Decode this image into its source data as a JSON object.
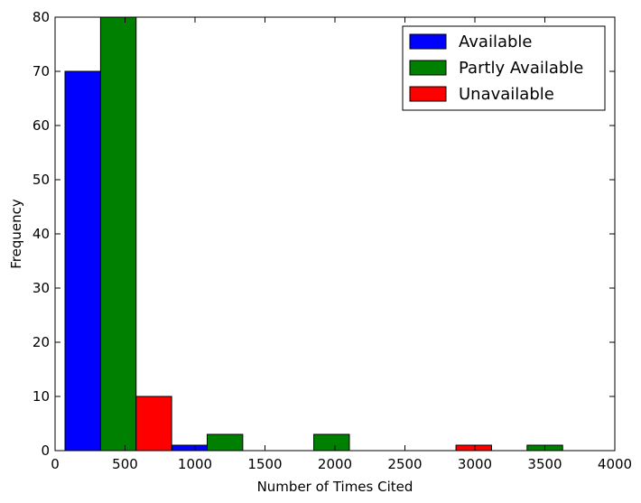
{
  "chart_data": {
    "type": "bar",
    "title": "",
    "xlabel": "Number of Times Cited",
    "ylabel": "Frequency",
    "xlim": [
      0,
      4000
    ],
    "ylim": [
      0,
      80
    ],
    "xticks": [
      0,
      500,
      1000,
      1500,
      2000,
      2500,
      3000,
      3500,
      4000
    ],
    "yticks": [
      0,
      10,
      20,
      30,
      40,
      50,
      60,
      70,
      80
    ],
    "grid": false,
    "legend_position": "top-right",
    "bin_edges": [
      71,
      833,
      1595,
      2357,
      3119,
      3881
    ],
    "series": [
      {
        "name": "Available",
        "color": "#0000ff",
        "values": [
          70,
          1,
          0,
          0,
          0
        ]
      },
      {
        "name": "Partly Available",
        "color": "#008000",
        "values": [
          80,
          3,
          3,
          0,
          1
        ]
      },
      {
        "name": "Unavailable",
        "color": "#ff0000",
        "values": [
          10,
          0,
          0,
          1,
          0
        ]
      }
    ]
  }
}
